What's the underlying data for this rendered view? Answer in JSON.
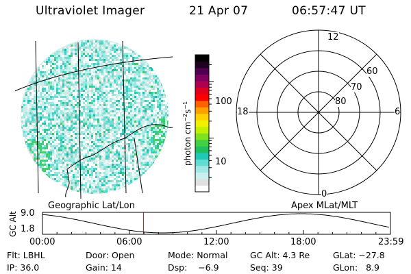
{
  "header": {
    "instrument": "Ultraviolet Imager",
    "date": "21 Apr 07",
    "time": "06:57:47 UT"
  },
  "colorbar": {
    "unit_label_html": "photon cm<tspan dy='-5' font-size='8'>−2</tspan><tspan dy='5'>s</tspan><tspan dy='-5' font-size='8'>−1</tspan>",
    "unit_label": "photon cm-2s-1",
    "ticks": [
      {
        "label": "100",
        "value": 100
      },
      {
        "label": "10",
        "value": 10
      }
    ],
    "colors": [
      "#ffffff",
      "#e0e0e0",
      "#c8f0ee",
      "#a0e8e4",
      "#60dcd4",
      "#20c8b8",
      "#20c060",
      "#40d040",
      "#80e020",
      "#c0f000",
      "#f0f000",
      "#ffd000",
      "#ffa000",
      "#ff6000",
      "#ff0000",
      "#e00020",
      "#b00050",
      "#800060",
      "#500050",
      "#200020",
      "#000000"
    ]
  },
  "map_labels": {
    "geographic": "Geographic Lat/Lon",
    "apex": "Apex  MLat/MLT"
  },
  "polar": {
    "mlt_labels": [
      {
        "label": "12",
        "pos": "top"
      },
      {
        "label": "18",
        "pos": "left"
      },
      {
        "label": "6",
        "pos": "right"
      },
      {
        "label": "0",
        "pos": "bottom"
      }
    ],
    "lat_labels": [
      "60",
      "70",
      "80"
    ]
  },
  "altitude_plot": {
    "ylabel": "GC Alt",
    "y_ticks": [
      "9.0",
      "1.8"
    ],
    "x_ticks": [
      "00:00",
      "06:00",
      "12:00",
      "18:00",
      "23:59"
    ],
    "current_time_marker": "06:57:47"
  },
  "info": {
    "row1": {
      "flt": "Flt: LBHL",
      "door": "Door: Open",
      "mode": "Mode: Normal",
      "gcalt": "GC Alt: 4.3 Re",
      "glat": "GLat: −27.8"
    },
    "row2": {
      "ip": "IP: 36.0",
      "gain": "Gain: 14",
      "dsp": "Dsp:    −6.9",
      "seq": "Seq: 39",
      "glon": "GLon:   8.9"
    }
  },
  "colors": {
    "background": "#ffffff",
    "marker": "#d00000",
    "line": "#000000"
  }
}
